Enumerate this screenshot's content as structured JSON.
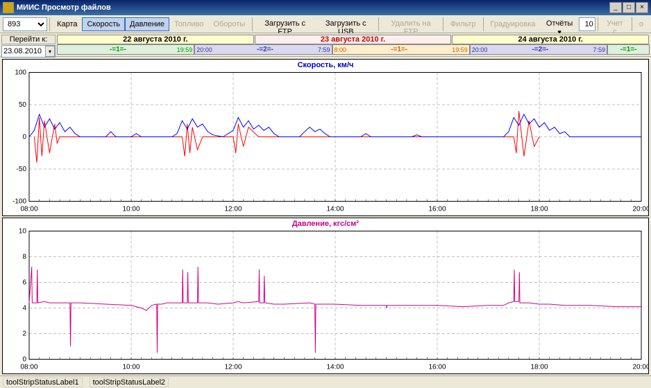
{
  "window": {
    "title": "МИИС Просмотр файлов"
  },
  "toolbar": {
    "vehicle_id": "893",
    "map": "Карта",
    "speed": "Скорость",
    "pressure": "Давление",
    "fuel": "Топливо",
    "rpm": "Обороты",
    "load_ftp": "Загрузить с FTP",
    "load_usb": "Загрузить с USB",
    "delete_ftp": "Удалить на FTP",
    "filter": "Фильтр",
    "calibration": "Градуировка",
    "reports": "Отчёты",
    "count": "10",
    "accounting": "Учет с",
    "disabled_tail": "о"
  },
  "goto": {
    "label": "Перейти к:",
    "date": "23.08.2010"
  },
  "days": {
    "headers": [
      {
        "label": "22 августа 2010 г.",
        "bg": "#ffffcc",
        "color": "#000000"
      },
      {
        "label": "23 августа 2010 г.",
        "bg": "#ffeeee",
        "color": "#cc0000"
      },
      {
        "label": "24 августа 2010 г.",
        "bg": "#ffffcc",
        "color": "#000000"
      }
    ],
    "segments": [
      {
        "start": "",
        "no": "-=1=-",
        "end": "19:59",
        "bg": "#ddf0dd",
        "color": "#009900",
        "flex": 7
      },
      {
        "start": "20:00",
        "no": "-=2=-",
        "end": "7:59",
        "bg": "#d8d8f0",
        "color": "#333399",
        "flex": 7
      },
      {
        "start": "8:00",
        "no": "-=1=-",
        "end": "19:59",
        "bg": "#ffeecc",
        "color": "#cc6600",
        "flex": 7
      },
      {
        "start": "20:00",
        "no": "-=2=-",
        "end": "7:59",
        "bg": "#d8d8f0",
        "color": "#333399",
        "flex": 7
      },
      {
        "start": "",
        "no": "-=1=-",
        "end": "",
        "bg": "#ddf0dd",
        "color": "#009900",
        "flex": 2
      }
    ]
  },
  "chart1": {
    "title": "Скорость, км/ч",
    "title_color": "#0000cc",
    "ylim": [
      -100,
      100
    ],
    "yticks": [
      -100,
      -50,
      0,
      50,
      100
    ],
    "xticks": [
      "08:00",
      "10:00",
      "12:00",
      "14:00",
      "16:00",
      "18:00",
      "20:00"
    ],
    "xrange": [
      8,
      20
    ],
    "grid_color": "#808080",
    "series": [
      {
        "color": "#ff0000",
        "width": 1,
        "data": [
          [
            8.1,
            0
          ],
          [
            8.15,
            -40
          ],
          [
            8.2,
            30
          ],
          [
            8.25,
            -30
          ],
          [
            8.3,
            25
          ],
          [
            8.4,
            -25
          ],
          [
            8.5,
            20
          ],
          [
            8.55,
            -10
          ],
          [
            8.6,
            0
          ],
          [
            11.0,
            0
          ],
          [
            11.05,
            -30
          ],
          [
            11.1,
            20
          ],
          [
            11.15,
            -25
          ],
          [
            11.2,
            15
          ],
          [
            11.3,
            -20
          ],
          [
            11.4,
            0
          ],
          [
            12.0,
            0
          ],
          [
            12.05,
            -25
          ],
          [
            12.1,
            20
          ],
          [
            12.2,
            -15
          ],
          [
            12.3,
            15
          ],
          [
            12.5,
            0
          ],
          [
            17.5,
            0
          ],
          [
            17.55,
            -25
          ],
          [
            17.6,
            40
          ],
          [
            17.7,
            -30
          ],
          [
            17.8,
            25
          ],
          [
            17.9,
            -15
          ],
          [
            18.0,
            0
          ]
        ]
      },
      {
        "color": "#0000ff",
        "width": 1,
        "data": [
          [
            8.0,
            0
          ],
          [
            8.1,
            10
          ],
          [
            8.2,
            35
          ],
          [
            8.3,
            15
          ],
          [
            8.4,
            28
          ],
          [
            8.5,
            12
          ],
          [
            8.6,
            22
          ],
          [
            8.7,
            8
          ],
          [
            8.8,
            15
          ],
          [
            8.9,
            5
          ],
          [
            9.0,
            0
          ],
          [
            9.5,
            0
          ],
          [
            9.6,
            8
          ],
          [
            9.7,
            0
          ],
          [
            10.0,
            0
          ],
          [
            10.1,
            5
          ],
          [
            10.2,
            0
          ],
          [
            10.8,
            0
          ],
          [
            10.9,
            5
          ],
          [
            11.0,
            25
          ],
          [
            11.1,
            12
          ],
          [
            11.2,
            28
          ],
          [
            11.3,
            15
          ],
          [
            11.4,
            20
          ],
          [
            11.5,
            8
          ],
          [
            11.6,
            3
          ],
          [
            11.8,
            0
          ],
          [
            12.0,
            10
          ],
          [
            12.1,
            30
          ],
          [
            12.2,
            15
          ],
          [
            12.3,
            25
          ],
          [
            12.4,
            12
          ],
          [
            12.5,
            18
          ],
          [
            12.6,
            10
          ],
          [
            12.7,
            15
          ],
          [
            12.8,
            5
          ],
          [
            12.9,
            0
          ],
          [
            13.3,
            0
          ],
          [
            13.4,
            8
          ],
          [
            13.5,
            15
          ],
          [
            13.6,
            8
          ],
          [
            13.7,
            12
          ],
          [
            13.8,
            5
          ],
          [
            13.9,
            0
          ],
          [
            14.5,
            0
          ],
          [
            14.6,
            5
          ],
          [
            14.7,
            0
          ],
          [
            15.5,
            0
          ],
          [
            15.6,
            3
          ],
          [
            15.7,
            0
          ],
          [
            17.3,
            0
          ],
          [
            17.4,
            8
          ],
          [
            17.5,
            30
          ],
          [
            17.6,
            18
          ],
          [
            17.7,
            35
          ],
          [
            17.8,
            20
          ],
          [
            17.9,
            28
          ],
          [
            18.0,
            15
          ],
          [
            18.1,
            22
          ],
          [
            18.2,
            10
          ],
          [
            18.3,
            15
          ],
          [
            18.4,
            5
          ],
          [
            18.5,
            8
          ],
          [
            18.6,
            0
          ],
          [
            20.0,
            0
          ]
        ]
      }
    ]
  },
  "chart2": {
    "title": "Давление, кгс/см²",
    "title_color": "#cc0088",
    "ylim": [
      0,
      10
    ],
    "yticks": [
      0,
      2,
      4,
      6,
      8,
      10
    ],
    "xticks": [
      "08:00",
      "10:00",
      "12:00",
      "14:00",
      "16:00",
      "18:00",
      "20:00"
    ],
    "xrange": [
      8,
      20
    ],
    "grid_color": "#808080",
    "series": [
      {
        "color": "#cc0088",
        "width": 1,
        "data": [
          [
            8.0,
            4.4
          ],
          [
            8.05,
            7.2
          ],
          [
            8.06,
            4.4
          ],
          [
            8.15,
            4.4
          ],
          [
            8.16,
            7.0
          ],
          [
            8.17,
            4.4
          ],
          [
            8.3,
            4.5
          ],
          [
            8.4,
            4.4
          ],
          [
            8.8,
            4.4
          ],
          [
            8.81,
            1.0
          ],
          [
            8.82,
            4.4
          ],
          [
            9.0,
            4.4
          ],
          [
            9.5,
            4.3
          ],
          [
            10.0,
            4.2
          ],
          [
            10.2,
            4.0
          ],
          [
            10.3,
            3.8
          ],
          [
            10.4,
            4.2
          ],
          [
            10.5,
            4.3
          ],
          [
            10.51,
            0.5
          ],
          [
            10.52,
            4.3
          ],
          [
            10.6,
            4.3
          ],
          [
            10.7,
            4.4
          ],
          [
            11.0,
            4.4
          ],
          [
            11.01,
            7.0
          ],
          [
            11.02,
            4.4
          ],
          [
            11.1,
            4.4
          ],
          [
            11.11,
            6.8
          ],
          [
            11.12,
            4.4
          ],
          [
            11.3,
            4.4
          ],
          [
            11.31,
            7.2
          ],
          [
            11.32,
            4.4
          ],
          [
            11.5,
            4.4
          ],
          [
            11.7,
            4.3
          ],
          [
            12.0,
            4.4
          ],
          [
            12.1,
            4.5
          ],
          [
            12.2,
            4.4
          ],
          [
            12.5,
            4.5
          ],
          [
            12.51,
            7.0
          ],
          [
            12.52,
            4.4
          ],
          [
            12.6,
            4.4
          ],
          [
            12.61,
            6.5
          ],
          [
            12.62,
            4.4
          ],
          [
            12.8,
            4.3
          ],
          [
            13.0,
            4.3
          ],
          [
            13.5,
            4.4
          ],
          [
            13.6,
            4.3
          ],
          [
            13.61,
            0.5
          ],
          [
            13.62,
            4.3
          ],
          [
            14.0,
            4.3
          ],
          [
            14.5,
            4.2
          ],
          [
            15.0,
            4.2
          ],
          [
            15.01,
            4.0
          ],
          [
            15.02,
            4.2
          ],
          [
            15.5,
            4.2
          ],
          [
            16.0,
            4.2
          ],
          [
            16.5,
            4.1
          ],
          [
            17.0,
            4.2
          ],
          [
            17.3,
            4.2
          ],
          [
            17.4,
            4.4
          ],
          [
            17.5,
            4.5
          ],
          [
            17.51,
            7.0
          ],
          [
            17.52,
            4.5
          ],
          [
            17.6,
            4.5
          ],
          [
            17.61,
            6.8
          ],
          [
            17.62,
            4.4
          ],
          [
            17.8,
            4.4
          ],
          [
            18.0,
            4.3
          ],
          [
            18.2,
            4.3
          ],
          [
            18.5,
            4.2
          ],
          [
            19.0,
            4.2
          ],
          [
            19.5,
            4.1
          ],
          [
            20.0,
            4.1
          ]
        ]
      }
    ]
  },
  "status": {
    "label1": "toolStripStatusLabel1",
    "label2": "toolStripStatusLabel2"
  }
}
